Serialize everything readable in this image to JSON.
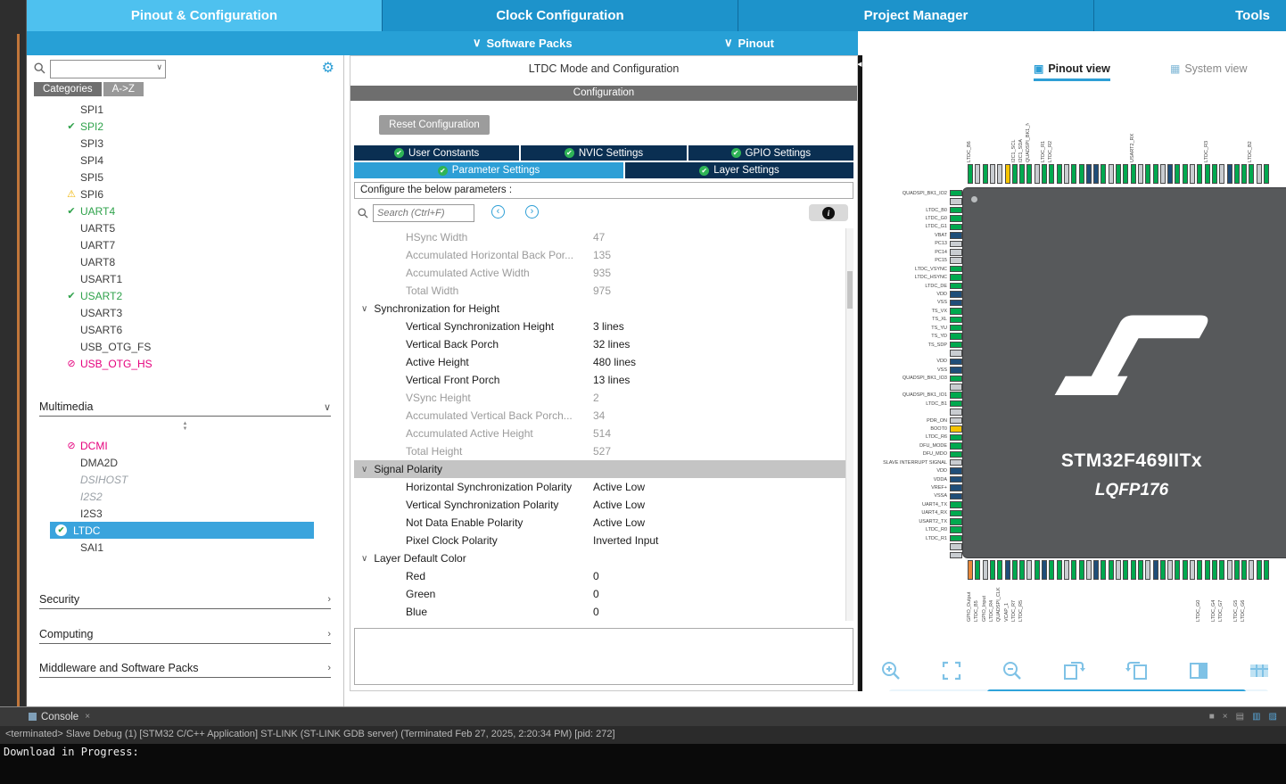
{
  "top_nav": {
    "tabs": [
      {
        "label": "Pinout & Configuration",
        "active": true
      },
      {
        "label": "Clock Configuration",
        "active": false
      },
      {
        "label": "Project Manager",
        "active": false
      },
      {
        "label": "Tools",
        "active": false
      }
    ]
  },
  "sub_nav": {
    "software_packs": "Software Packs",
    "pinout": "Pinout"
  },
  "sidebar": {
    "search_value": "",
    "tabs": [
      {
        "label": "Categories",
        "active": true
      },
      {
        "label": "A->Z",
        "active": false
      }
    ],
    "connectivity_items": [
      {
        "label": "SPI1",
        "status": "none"
      },
      {
        "label": "SPI2",
        "status": "check"
      },
      {
        "label": "SPI3",
        "status": "none"
      },
      {
        "label": "SPI4",
        "status": "none"
      },
      {
        "label": "SPI5",
        "status": "none"
      },
      {
        "label": "SPI6",
        "status": "warn"
      },
      {
        "label": "UART4",
        "status": "check"
      },
      {
        "label": "UART5",
        "status": "none"
      },
      {
        "label": "UART7",
        "status": "none"
      },
      {
        "label": "UART8",
        "status": "none"
      },
      {
        "label": "USART1",
        "status": "none"
      },
      {
        "label": "USART2",
        "status": "check"
      },
      {
        "label": "USART3",
        "status": "none"
      },
      {
        "label": "USART6",
        "status": "none"
      },
      {
        "label": "USB_OTG_FS",
        "status": "none"
      },
      {
        "label": "USB_OTG_HS",
        "status": "blocked"
      }
    ],
    "multimedia": {
      "header": "Multimedia",
      "items": [
        {
          "label": "DCMI",
          "status": "blocked"
        },
        {
          "label": "DMA2D",
          "status": "none"
        },
        {
          "label": "DSIHOST",
          "status": "dim"
        },
        {
          "label": "I2S2",
          "status": "dim"
        },
        {
          "label": "I2S3",
          "status": "none"
        },
        {
          "label": "LTDC",
          "status": "selected"
        },
        {
          "label": "SAI1",
          "status": "none"
        }
      ]
    },
    "sections": [
      {
        "label": "Security"
      },
      {
        "label": "Computing"
      },
      {
        "label": "Middleware and Software Packs"
      }
    ]
  },
  "mode_panel": {
    "title": "LTDC Mode and Configuration",
    "config_header": "Configuration",
    "reset_button": "Reset Configuration",
    "settings_tabs": [
      {
        "label": "User Constants"
      },
      {
        "label": "NVIC Settings"
      },
      {
        "label": "GPIO Settings"
      },
      {
        "label": "Parameter Settings",
        "active": true
      },
      {
        "label": "Layer Settings"
      }
    ],
    "configure_label": "Configure the below parameters :",
    "search_placeholder": "Search (Ctrl+F)",
    "parameters": [
      {
        "t": "param",
        "name": "HSync Width",
        "value": "47",
        "disabled": true
      },
      {
        "t": "param",
        "name": "Accumulated Horizontal Back Por...",
        "value": "135",
        "disabled": true
      },
      {
        "t": "param",
        "name": "Accumulated Active Width",
        "value": "935",
        "disabled": true
      },
      {
        "t": "param",
        "name": "Total Width",
        "value": "975",
        "disabled": true
      },
      {
        "t": "section",
        "name": "Synchronization for Height"
      },
      {
        "t": "param",
        "name": "Vertical Synchronization Height",
        "value": "3 lines"
      },
      {
        "t": "param",
        "name": "Vertical Back Porch",
        "value": "32 lines"
      },
      {
        "t": "param",
        "name": "Active Height",
        "value": "480 lines"
      },
      {
        "t": "param",
        "name": "Vertical Front Porch",
        "value": "13 lines"
      },
      {
        "t": "param",
        "name": "VSync Height",
        "value": "2",
        "disabled": true
      },
      {
        "t": "param",
        "name": "Accumulated Vertical Back Porch...",
        "value": "34",
        "disabled": true
      },
      {
        "t": "param",
        "name": "Accumulated Active Height",
        "value": "514",
        "disabled": true
      },
      {
        "t": "param",
        "name": "Total Height",
        "value": "527",
        "disabled": true
      },
      {
        "t": "section",
        "name": "Signal Polarity",
        "selected": true
      },
      {
        "t": "param",
        "name": "Horizontal Synchronization Polarity",
        "value": "Active Low"
      },
      {
        "t": "param",
        "name": "Vertical Synchronization Polarity",
        "value": "Active Low"
      },
      {
        "t": "param",
        "name": "Not Data Enable Polarity",
        "value": "Active Low"
      },
      {
        "t": "param",
        "name": "Pixel Clock Polarity",
        "value": "Inverted Input"
      },
      {
        "t": "section",
        "name": "Layer Default Color"
      },
      {
        "t": "param",
        "name": "Red",
        "value": "0"
      },
      {
        "t": "param",
        "name": "Green",
        "value": "0"
      },
      {
        "t": "param",
        "name": "Blue",
        "value": "0"
      }
    ]
  },
  "pinout_panel": {
    "tabs": [
      {
        "label": "Pinout view",
        "active": true
      },
      {
        "label": "System view",
        "active": false
      }
    ],
    "chip": {
      "name": "STM32F469IITx",
      "package": "LQFP176"
    },
    "pin_colors": {
      "g": "#00A94F",
      "d": "#C9CDD1",
      "n": "#1F4E79",
      "y": "#F5C400",
      "o": "#E8883A"
    },
    "left_pins": [
      {
        "label": "QUADSPI_BK1_IO2",
        "c": "g"
      },
      {
        "label": "",
        "c": "d"
      },
      {
        "label": "LTDC_B0",
        "c": "g"
      },
      {
        "label": "LTDC_G0",
        "c": "g"
      },
      {
        "label": "LTDC_G1",
        "c": "g"
      },
      {
        "label": "VBAT",
        "c": "n"
      },
      {
        "label": "PC13",
        "c": "d"
      },
      {
        "label": "PC14",
        "c": "d"
      },
      {
        "label": "PC15",
        "c": "d"
      },
      {
        "label": "LTDC_VSYNC",
        "c": "g"
      },
      {
        "label": "LTDC_HSYNC",
        "c": "g"
      },
      {
        "label": "LTDC_DE",
        "c": "g"
      },
      {
        "label": "VDD",
        "c": "n"
      },
      {
        "label": "VSS",
        "c": "n"
      },
      {
        "label": "TS_VX",
        "c": "g"
      },
      {
        "label": "TS_XL",
        "c": "g"
      },
      {
        "label": "TS_YU",
        "c": "g"
      },
      {
        "label": "TS_YD",
        "c": "g"
      },
      {
        "label": "TS_SDP",
        "c": "g"
      },
      {
        "label": "",
        "c": "d"
      },
      {
        "label": "VDD",
        "c": "n"
      },
      {
        "label": "VSS",
        "c": "n"
      },
      {
        "label": "QUADSPI_BK1_IO3",
        "c": "g"
      },
      {
        "label": "",
        "c": "d"
      },
      {
        "label": "QUADSPI_BK1_IO1",
        "c": "g"
      },
      {
        "label": "LTDC_B1",
        "c": "g"
      },
      {
        "label": "",
        "c": "d"
      },
      {
        "label": "PDR_ON",
        "c": "d"
      },
      {
        "label": "BOOT0",
        "c": "y"
      },
      {
        "label": "LTDC_R6",
        "c": "g"
      },
      {
        "label": "DFU_MODE",
        "c": "g"
      },
      {
        "label": "DFU_MDO",
        "c": "g"
      },
      {
        "label": "SLAVE INTERRUPT SIGNAL",
        "c": "d"
      },
      {
        "label": "VDD",
        "c": "n"
      },
      {
        "label": "VDDA",
        "c": "n"
      },
      {
        "label": "VREF+",
        "c": "n"
      },
      {
        "label": "VSSA",
        "c": "n"
      },
      {
        "label": "UART4_TX",
        "c": "g"
      },
      {
        "label": "UART4_RX",
        "c": "g"
      },
      {
        "label": "USART2_TX",
        "c": "g"
      },
      {
        "label": "LTDC_R0",
        "c": "g"
      },
      {
        "label": "LTDC_R1",
        "c": "g"
      },
      {
        "label": "",
        "c": "d"
      },
      {
        "label": "",
        "c": "d"
      }
    ],
    "top_pins": [
      {
        "label": "LTDC_B6",
        "c": "g"
      },
      {
        "label": "",
        "c": "d"
      },
      {
        "label": "",
        "c": "g"
      },
      {
        "label": "",
        "c": "d"
      },
      {
        "label": "",
        "c": "d"
      },
      {
        "label": "",
        "c": "y"
      },
      {
        "label": "I2C1_SCL",
        "c": "g"
      },
      {
        "label": "I2C1_SDA",
        "c": "g"
      },
      {
        "label": "QUADSPI_BK1_NCS",
        "c": "g"
      },
      {
        "label": "",
        "c": "d"
      },
      {
        "label": "LTDC_R1",
        "c": "g"
      },
      {
        "label": "LTDC_R2",
        "c": "g"
      },
      {
        "label": "",
        "c": "g"
      },
      {
        "label": "",
        "c": "d"
      },
      {
        "label": "",
        "c": "g"
      },
      {
        "label": "",
        "c": "g"
      },
      {
        "label": "",
        "c": "n"
      },
      {
        "label": "",
        "c": "n"
      },
      {
        "label": "",
        "c": "g"
      },
      {
        "label": "",
        "c": "d"
      },
      {
        "label": "",
        "c": "g"
      },
      {
        "label": "",
        "c": "g"
      },
      {
        "label": "USART2_RX",
        "c": "g"
      },
      {
        "label": "",
        "c": "d"
      },
      {
        "label": "",
        "c": "g"
      },
      {
        "label": "",
        "c": "g"
      },
      {
        "label": "",
        "c": "d"
      },
      {
        "label": "",
        "c": "n"
      },
      {
        "label": "",
        "c": "g"
      },
      {
        "label": "",
        "c": "g"
      },
      {
        "label": "",
        "c": "d"
      },
      {
        "label": "",
        "c": "g"
      },
      {
        "label": "LTDC_R3",
        "c": "g"
      },
      {
        "label": "",
        "c": "g"
      },
      {
        "label": "",
        "c": "d"
      },
      {
        "label": "",
        "c": "n"
      },
      {
        "label": "",
        "c": "g"
      },
      {
        "label": "",
        "c": "g"
      },
      {
        "label": "LTDC_B2",
        "c": "g"
      },
      {
        "label": "",
        "c": "d"
      },
      {
        "label": "",
        "c": "g"
      }
    ],
    "bottom_pins": [
      {
        "label": "GPIO_Output",
        "c": "o"
      },
      {
        "label": "LTDC_B5",
        "c": "g"
      },
      {
        "label": "GPIO_Input",
        "c": "d"
      },
      {
        "label": "LTDC_R4",
        "c": "g"
      },
      {
        "label": "QUADSPI_CLK",
        "c": "g"
      },
      {
        "label": "VCAP_1",
        "c": "n"
      },
      {
        "label": "LTDC_R7",
        "c": "g"
      },
      {
        "label": "LTDC_R5",
        "c": "g"
      },
      {
        "label": "",
        "c": "d"
      },
      {
        "label": "",
        "c": "g"
      },
      {
        "label": "",
        "c": "n"
      },
      {
        "label": "",
        "c": "g"
      },
      {
        "label": "",
        "c": "g"
      },
      {
        "label": "",
        "c": "d"
      },
      {
        "label": "",
        "c": "g"
      },
      {
        "label": "",
        "c": "g"
      },
      {
        "label": "",
        "c": "d"
      },
      {
        "label": "",
        "c": "n"
      },
      {
        "label": "",
        "c": "g"
      },
      {
        "label": "",
        "c": "g"
      },
      {
        "label": "",
        "c": "d"
      },
      {
        "label": "",
        "c": "g"
      },
      {
        "label": "",
        "c": "g"
      },
      {
        "label": "",
        "c": "g"
      },
      {
        "label": "",
        "c": "d"
      },
      {
        "label": "",
        "c": "n"
      },
      {
        "label": "",
        "c": "g"
      },
      {
        "label": "",
        "c": "d"
      },
      {
        "label": "",
        "c": "g"
      },
      {
        "label": "",
        "c": "g"
      },
      {
        "label": "",
        "c": "d"
      },
      {
        "label": "LTDC_G0",
        "c": "g"
      },
      {
        "label": "",
        "c": "g"
      },
      {
        "label": "LTDC_G4",
        "c": "g"
      },
      {
        "label": "LTDC_G7",
        "c": "g"
      },
      {
        "label": "",
        "c": "d"
      },
      {
        "label": "LTDC_G5",
        "c": "g"
      },
      {
        "label": "LTDC_G6",
        "c": "g"
      },
      {
        "label": "",
        "c": "d"
      },
      {
        "label": "",
        "c": "g"
      },
      {
        "label": "",
        "c": "g"
      }
    ]
  },
  "console": {
    "tab_label": "Console",
    "info_line": "<terminated> Slave Debug (1) [STM32 C/C++ Application] ST-LINK (ST-LINK GDB server) (Terminated Feb 27, 2025, 2:20:34 PM) [pid: 272]",
    "output_text": "Download in Progress:"
  }
}
